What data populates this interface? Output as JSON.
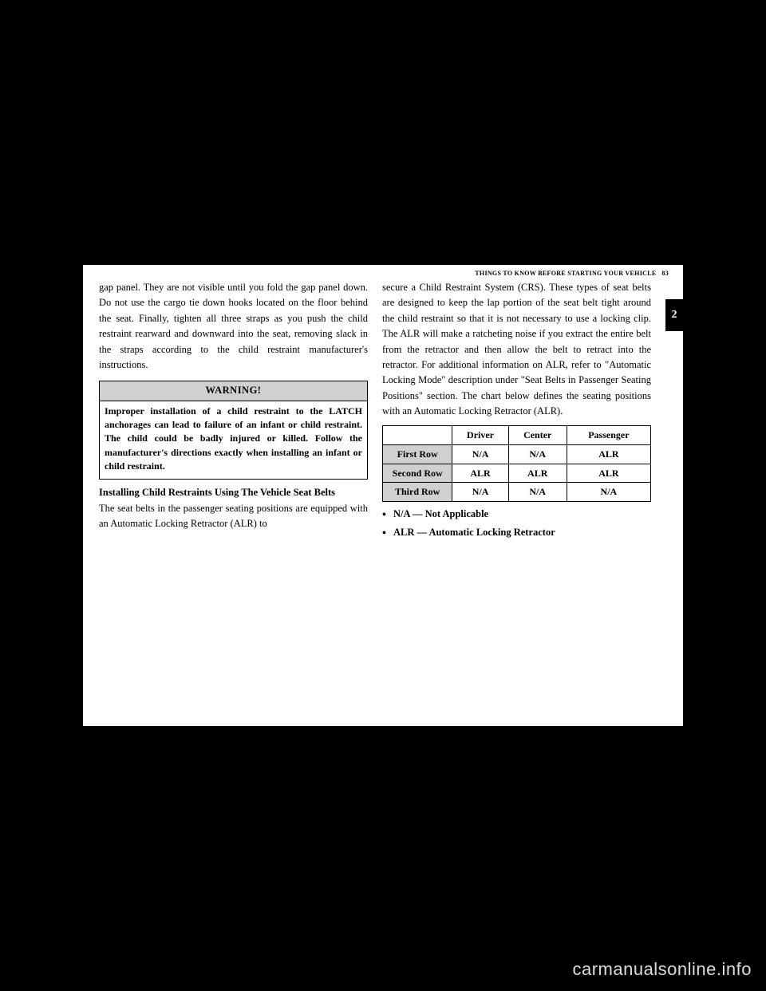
{
  "header": {
    "breadcrumb": "THINGS TO KNOW BEFORE STARTING YOUR VEHICLE",
    "page_no": "83"
  },
  "section_tab": "2",
  "left": {
    "para1": "gap panel. They are not visible until you fold the gap panel down. Do not use the cargo tie down hooks located on the floor behind the seat. Finally, tighten all three straps as you push the child restraint rearward and downward into the seat, removing slack in the straps according to the child restraint manufacturer's instructions.",
    "warning_title": "WARNING!",
    "warning_body": "Improper installation of a child restraint to the LATCH anchorages can lead to failure of an infant or child restraint. The child could be badly injured or killed. Follow the manufacturer's directions exactly when installing an infant or child restraint.",
    "sub_heading": "Installing Child Restraints Using The Vehicle Seat Belts",
    "para2": "The seat belts in the passenger seating positions are equipped with an Automatic Locking Retractor (ALR) to"
  },
  "right": {
    "para1": "secure a Child Restraint System (CRS). These types of seat belts are designed to keep the lap portion of the seat belt tight around the child restraint so that it is not necessary to use a locking clip. The ALR will make a ratcheting noise if you extract the entire belt from the retractor and then allow the belt to retract into the retractor. For additional information on ALR, refer to \"Automatic Locking Mode\" description under \"Seat Belts in Passenger Seating Positions\" section. The chart below defines the seating positions with an Automatic Locking Retractor (ALR).",
    "table": {
      "columns": [
        "",
        "Driver",
        "Center",
        "Passenger"
      ],
      "rows": [
        {
          "head": "First Row",
          "cells": [
            "N/A",
            "N/A",
            "ALR"
          ]
        },
        {
          "head": "Second Row",
          "cells": [
            "ALR",
            "ALR",
            "ALR"
          ]
        },
        {
          "head": "Third Row",
          "cells": [
            "N/A",
            "N/A",
            "N/A"
          ]
        }
      ],
      "header_bg": "#d0d0d0",
      "border_color": "#000000"
    },
    "legend": [
      "N/A — Not Applicable",
      "ALR — Automatic Locking Retractor"
    ]
  },
  "watermark": "carmanualsonline.info"
}
